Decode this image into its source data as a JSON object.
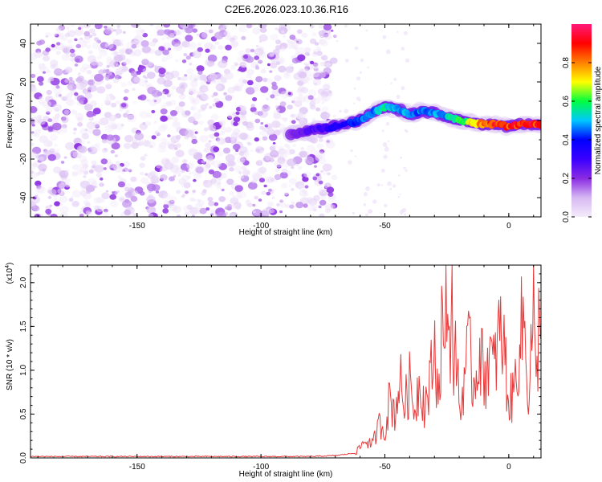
{
  "title": "C2E6.2026.023.10.36.R16",
  "chart_data": [
    {
      "type": "heatmap",
      "title": "C2E6.2026.023.10.36.R16",
      "xlabel": "Height of straight line (km)",
      "ylabel": "Frequency (Hz)",
      "xlim": [
        -193,
        13
      ],
      "ylim": [
        -50,
        50
      ],
      "xticks": [
        -150,
        -100,
        -50,
        0
      ],
      "xtick_labels": [
        "-150",
        "-100",
        "-50",
        "0"
      ],
      "yticks": [
        -40,
        -20,
        0,
        20,
        40
      ],
      "ytick_labels": [
        "-40",
        "-20",
        "0",
        "20",
        "40"
      ],
      "noise_region_x": [
        -193,
        -70
      ],
      "signal_trace": {
        "x": [
          -88,
          -80,
          -70,
          -60,
          -55,
          -50,
          -45,
          -40,
          -35,
          -30,
          -25,
          -20,
          -15,
          -10,
          -5,
          0,
          5,
          10,
          13
        ],
        "frequency": [
          -7,
          -5,
          -3,
          0,
          4,
          7,
          6,
          3,
          5,
          4,
          2,
          0,
          -1,
          -2,
          -2,
          -3,
          -2,
          -2,
          -2
        ],
        "amplitude": [
          0.22,
          0.28,
          0.35,
          0.45,
          0.5,
          0.55,
          0.52,
          0.5,
          0.48,
          0.5,
          0.52,
          0.6,
          0.7,
          0.85,
          0.95,
          0.9,
          0.92,
          0.95,
          0.95
        ]
      },
      "colorbar": {
        "label": "Normalized spectral amplitude",
        "range": [
          0.0,
          1.0
        ],
        "ticks": [
          0.0,
          0.2,
          0.4,
          0.6,
          0.8
        ],
        "tick_labels": [
          "0.0",
          "0.2",
          "0.4",
          "0.6",
          "0.8"
        ],
        "colors": [
          "#f4ecfa",
          "#d6b8f2",
          "#8a2be2",
          "#3a00ff",
          "#0000ff",
          "#00c8ff",
          "#00ff40",
          "#ffff00",
          "#ff8000",
          "#ff0000",
          "#ff1a7a"
        ]
      }
    },
    {
      "type": "line",
      "xlabel": "Height of straight line (km)",
      "ylabel": "SNR (10 * v/v)",
      "y_multiplier": "(x10",
      "y_multiplier_exp": "4",
      "y_multiplier_close": ")",
      "xlim": [
        -193,
        13
      ],
      "ylim": [
        0,
        2.2
      ],
      "xticks": [
        -150,
        -100,
        -50,
        0
      ],
      "xtick_labels": [
        "-150",
        "-100",
        "-50",
        "0"
      ],
      "yticks": [
        0.0,
        0.5,
        1.0,
        1.5,
        2.0
      ],
      "ytick_labels": [
        "0.0",
        "0.5",
        "1.0",
        "1.5",
        "2.0"
      ],
      "line_color": "#e83a3a",
      "series": [
        {
          "name": "SNR",
          "x": [
            -193,
            -150,
            -100,
            -80,
            -70,
            -62,
            -58,
            -55,
            -52,
            -50,
            -48,
            -46,
            -44,
            -42,
            -40,
            -38,
            -36,
            -34,
            -32,
            -30,
            -28,
            -27,
            -26,
            -25,
            -24,
            -23,
            -22,
            -21,
            -20,
            -19,
            -18,
            -16,
            -14,
            -12,
            -10,
            -8,
            -6,
            -4,
            -2,
            0,
            2,
            4,
            6,
            8,
            10,
            11,
            12,
            13
          ],
          "y": [
            0.01,
            0.01,
            0.01,
            0.01,
            0.02,
            0.05,
            0.2,
            0.15,
            0.4,
            0.3,
            0.7,
            0.5,
            0.9,
            0.6,
            0.85,
            0.55,
            0.9,
            0.6,
            0.8,
            1.25,
            0.7,
            1.7,
            0.9,
            2.2,
            1.2,
            2.0,
            0.8,
            1.4,
            0.5,
            0.6,
            1.0,
            1.2,
            0.8,
            1.3,
            0.9,
            1.2,
            1.0,
            1.4,
            1.3,
            0.6,
            0.75,
            1.25,
            1.6,
            0.7,
            1.8,
            0.65,
            1.5,
            1.4
          ]
        }
      ]
    }
  ]
}
